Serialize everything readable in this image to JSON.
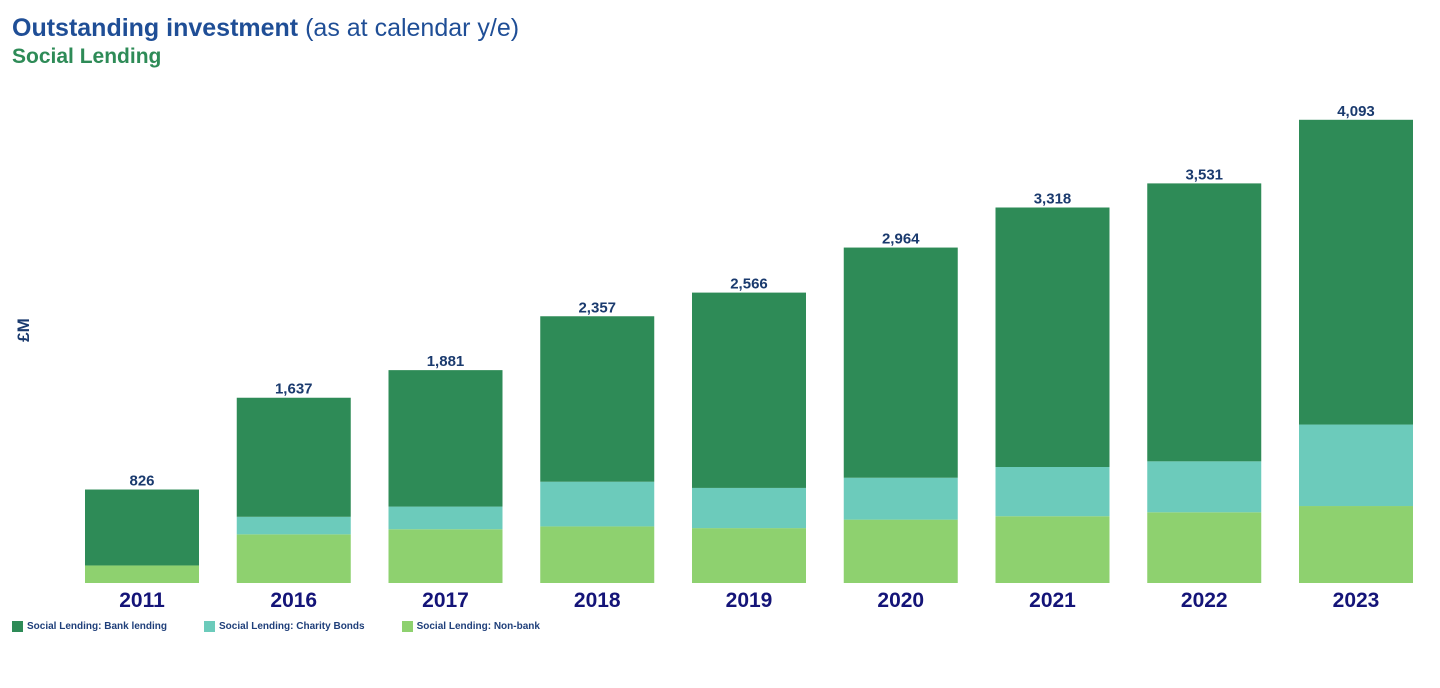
{
  "header": {
    "title_bold": "Outstanding investment",
    "title_rest": "(as at calendar y/e)",
    "subtitle": "Social Lending"
  },
  "colors": {
    "bank_lending": "#2e8b57",
    "charity_bonds": "#6ccbbb",
    "non_bank": "#8ed16f",
    "title": "#1f4e96",
    "labels": "#1a3a6e",
    "axis_ticks": "#141478"
  },
  "chart_data": {
    "type": "bar",
    "stacked": true,
    "ylabel": "£M",
    "ylim": [
      0,
      4100
    ],
    "grid": false,
    "legend_position": "bottom-left",
    "categories": [
      "2011",
      "2016",
      "2017",
      "2018",
      "2019",
      "2020",
      "2021",
      "2022",
      "2023"
    ],
    "totals": [
      826,
      1637,
      1881,
      2357,
      2566,
      2964,
      3318,
      3531,
      4093
    ],
    "total_labels": [
      "826",
      "1,637",
      "1,881",
      "2,357",
      "2,566",
      "2,964",
      "3,318",
      "3,531",
      "4,093"
    ],
    "series": [
      {
        "name": "Social Lending: Non-bank",
        "color": "#8ed16f",
        "values": [
          155,
          430,
          475,
          500,
          485,
          560,
          590,
          625,
          680
        ]
      },
      {
        "name": "Social Lending: Charity Bonds",
        "color": "#6ccbbb",
        "values": [
          0,
          155,
          200,
          395,
          355,
          370,
          435,
          450,
          720
        ]
      },
      {
        "name": "Social Lending: Bank lending",
        "color": "#2e8b57",
        "values": [
          671,
          1052,
          1206,
          1462,
          1726,
          2034,
          2293,
          2456,
          2693
        ]
      }
    ]
  },
  "legend": [
    {
      "label": "Social Lending: Bank lending",
      "color": "#2e8b57"
    },
    {
      "label": "Social Lending: Charity Bonds",
      "color": "#6ccbbb"
    },
    {
      "label": "Social Lending: Non-bank",
      "color": "#8ed16f"
    }
  ]
}
